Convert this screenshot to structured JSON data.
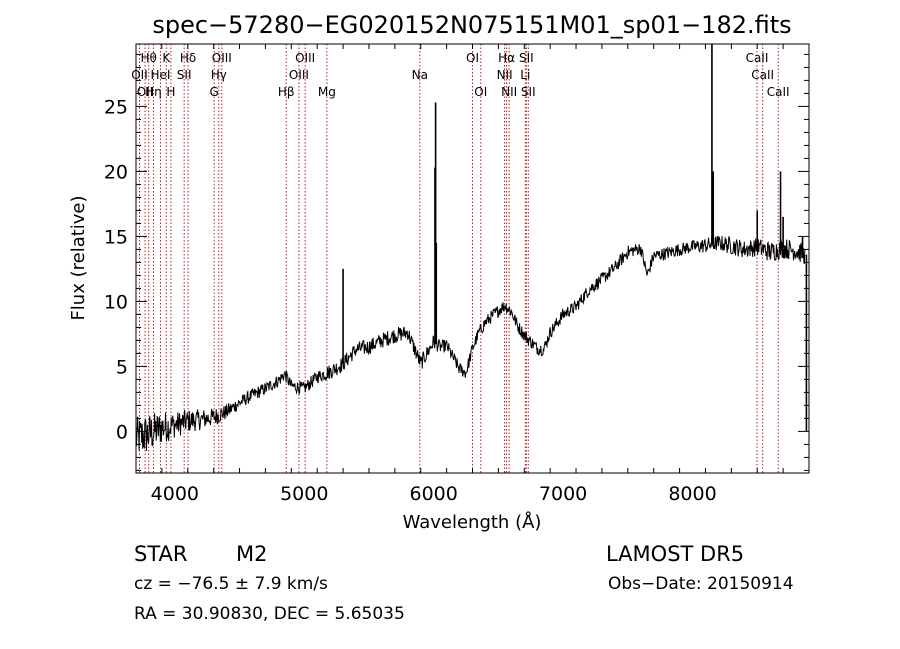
{
  "chart_data": {
    "type": "line",
    "title": "spec−57280−EG020152N075151M01_sp01−182.fits",
    "xlabel": "Wavelength (Å)",
    "ylabel": "Flux (relative)",
    "xlim": [
      3700,
      8900
    ],
    "ylim": [
      -3.2,
      29.8
    ],
    "xticks": [
      4000,
      5000,
      6000,
      7000,
      8000
    ],
    "yticks": [
      0,
      5,
      10,
      15,
      20,
      25
    ],
    "line_color": "#000000",
    "marker_color": "#b22222",
    "grid": false,
    "continuum": {
      "x": [
        3700,
        3800,
        3900,
        4000,
        4100,
        4200,
        4300,
        4400,
        4500,
        4600,
        4700,
        4800,
        4850,
        4900,
        5000,
        5100,
        5200,
        5300,
        5400,
        5500,
        5600,
        5700,
        5800,
        5900,
        6000,
        6050,
        6100,
        6200,
        6250,
        6300,
        6350,
        6400,
        6500,
        6550,
        6600,
        6650,
        6700,
        6800,
        6850,
        6900,
        7000,
        7100,
        7200,
        7300,
        7400,
        7500,
        7600,
        7650,
        7700,
        7800,
        7900,
        8000,
        8100,
        8200,
        8300,
        8400,
        8500,
        8600,
        8700,
        8800,
        8870
      ],
      "y": [
        -0.5,
        -0.2,
        0.3,
        0.5,
        0.8,
        0.9,
        1.1,
        1.5,
        2.2,
        2.8,
        3.3,
        3.9,
        4.4,
        3.5,
        3.3,
        4.2,
        4.6,
        5.2,
        6.3,
        6.5,
        7.0,
        7.4,
        7.6,
        5.2,
        6.9,
        6.5,
        6.6,
        4.8,
        4.5,
        6.4,
        7.6,
        8.4,
        9.3,
        9.7,
        9.2,
        8.1,
        7.4,
        6.4,
        6.3,
        7.6,
        9.0,
        9.6,
        10.9,
        11.7,
        12.6,
        13.8,
        14.1,
        12.0,
        13.5,
        13.7,
        14.0,
        14.2,
        14.3,
        14.5,
        14.3,
        14.0,
        14.2,
        13.8,
        14.1,
        13.9,
        13.6
      ],
      "noise": [
        1.6,
        1.6,
        1.3,
        1.0,
        0.9,
        0.8,
        0.7,
        0.6,
        0.5,
        0.5,
        0.5,
        0.5,
        0.5,
        0.5,
        0.5,
        0.5,
        0.6,
        0.6,
        0.6,
        0.6,
        0.6,
        0.6,
        0.6,
        0.6,
        0.6,
        0.5,
        0.5,
        0.5,
        0.5,
        0.5,
        0.5,
        0.5,
        0.5,
        0.5,
        0.5,
        0.5,
        0.5,
        0.5,
        0.5,
        0.5,
        0.5,
        0.5,
        0.5,
        0.5,
        0.5,
        0.5,
        0.5,
        0.5,
        0.5,
        0.5,
        0.5,
        0.5,
        0.6,
        0.6,
        0.7,
        0.7,
        0.7,
        0.8,
        0.8,
        0.8,
        0.8
      ]
    },
    "spikes": [
      {
        "x": 5300,
        "y": 12.5
      },
      {
        "x": 6015,
        "y": 25.3
      },
      {
        "x": 6010,
        "y": 20.3
      },
      {
        "x": 6020,
        "y": 14.5
      },
      {
        "x": 8150,
        "y": 30.0
      },
      {
        "x": 8160,
        "y": 20.0
      },
      {
        "x": 8500,
        "y": 17.0
      },
      {
        "x": 8680,
        "y": 20.0
      },
      {
        "x": 8700,
        "y": 16.5
      },
      {
        "x": 8850,
        "y": 15.0
      },
      {
        "x": 8880,
        "y": 0.0
      }
    ],
    "lines": [
      {
        "x": 3727,
        "label": "OII",
        "row": 2
      },
      {
        "x": 3770,
        "label": "OII",
        "row": 3
      },
      {
        "x": 3798,
        "label": "Hθ",
        "row": 1
      },
      {
        "x": 3835,
        "label": "Hη",
        "row": 3
      },
      {
        "x": 3889,
        "label": "HeI",
        "row": 2
      },
      {
        "x": 3934,
        "label": "K",
        "row": 1
      },
      {
        "x": 3970,
        "label": "H",
        "row": 3
      },
      {
        "x": 4072,
        "label": "SII",
        "row": 2
      },
      {
        "x": 4102,
        "label": "Hδ",
        "row": 1
      },
      {
        "x": 4304,
        "label": "G",
        "row": 3
      },
      {
        "x": 4340,
        "label": "Hγ",
        "row": 2
      },
      {
        "x": 4363,
        "label": "OIII",
        "row": 1
      },
      {
        "x": 4861,
        "label": "Hβ",
        "row": 3
      },
      {
        "x": 4959,
        "label": "OIII",
        "row": 2
      },
      {
        "x": 5007,
        "label": "OIII",
        "row": 1
      },
      {
        "x": 5175,
        "label": "Mg",
        "row": 3
      },
      {
        "x": 5893,
        "label": "Na",
        "row": 2
      },
      {
        "x": 6300,
        "label": "OI",
        "row": 1
      },
      {
        "x": 6364,
        "label": "OI",
        "row": 3
      },
      {
        "x": 6548,
        "label": "NII",
        "row": 2
      },
      {
        "x": 6563,
        "label": "Hα",
        "row": 1
      },
      {
        "x": 6583,
        "label": "NII",
        "row": 3
      },
      {
        "x": 6716,
        "label": "SII",
        "row": 1
      },
      {
        "x": 6708,
        "label": "Li",
        "row": 2
      },
      {
        "x": 6731,
        "label": "SII",
        "row": 3
      },
      {
        "x": 8498,
        "label": "CaII",
        "row": 1
      },
      {
        "x": 8542,
        "label": "CaII",
        "row": 2
      },
      {
        "x": 8662,
        "label": "CaII",
        "row": 3
      }
    ]
  },
  "info": {
    "class_label": "STAR",
    "subclass_label": "M2",
    "survey_label": "LAMOST DR5",
    "cz_text": "cz = −76.5 ± 7.9 km/s",
    "obs_date_text": "Obs−Date: 20150914",
    "coords_text": "RA =  30.90830, DEC =   5.65035"
  }
}
